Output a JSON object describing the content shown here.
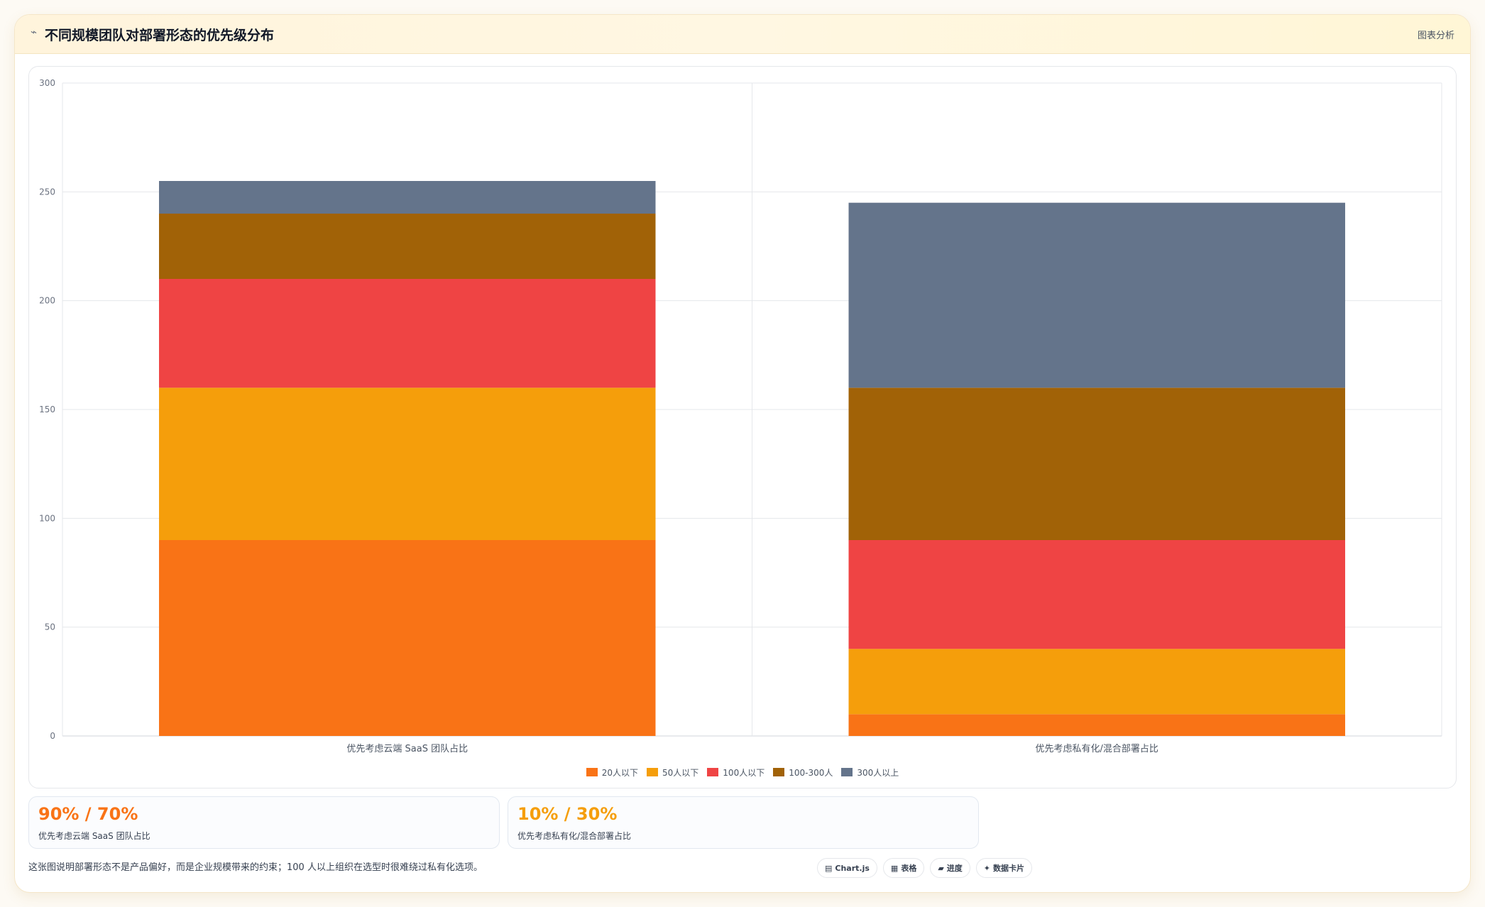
{
  "header": {
    "icon": "line-chart-icon",
    "title": "不同规模团队对部署形态的优先级分布",
    "link": "图表分析"
  },
  "chart_data": {
    "type": "bar",
    "stacked": true,
    "categories": [
      "优先考虑云端 SaaS 团队占比",
      "优先考虑私有化/混合部署占比"
    ],
    "series": [
      {
        "name": "20人以下",
        "color": "#f97316",
        "values": [
          90,
          10
        ]
      },
      {
        "name": "50人以下",
        "color": "#f59e0b",
        "values": [
          70,
          30
        ]
      },
      {
        "name": "100人以下",
        "color": "#ef4444",
        "values": [
          50,
          50
        ]
      },
      {
        "name": "100-300人",
        "color": "#a16207",
        "values": [
          30,
          70
        ]
      },
      {
        "name": "300人以上",
        "color": "#64748b",
        "values": [
          15,
          85
        ]
      }
    ],
    "ylim": [
      0,
      300
    ],
    "yticks": [
      0,
      50,
      100,
      150,
      200,
      250,
      300
    ],
    "grid": true,
    "legend": "bottom"
  },
  "stats": [
    {
      "value": "90% / 70%",
      "label": "优先考虑云端 SaaS 团队占比",
      "color": "#f97316"
    },
    {
      "value": "10% / 30%",
      "label": "优先考虑私有化/混合部署占比",
      "color": "#f59e0b"
    }
  ],
  "footnote": "这张图说明部署形态不是产品偏好，而是企业规模带来的约束；100 人以上组织在选型时很难绕过私有化选项。",
  "badges": [
    {
      "icon": "chart-icon",
      "glyph": "▤",
      "label": "Chart.js"
    },
    {
      "icon": "table-icon",
      "glyph": "▦",
      "label": "表格"
    },
    {
      "icon": "progress-icon",
      "glyph": "▰",
      "label": "进度"
    },
    {
      "icon": "card-icon",
      "glyph": "✦",
      "label": "数据卡片"
    }
  ]
}
